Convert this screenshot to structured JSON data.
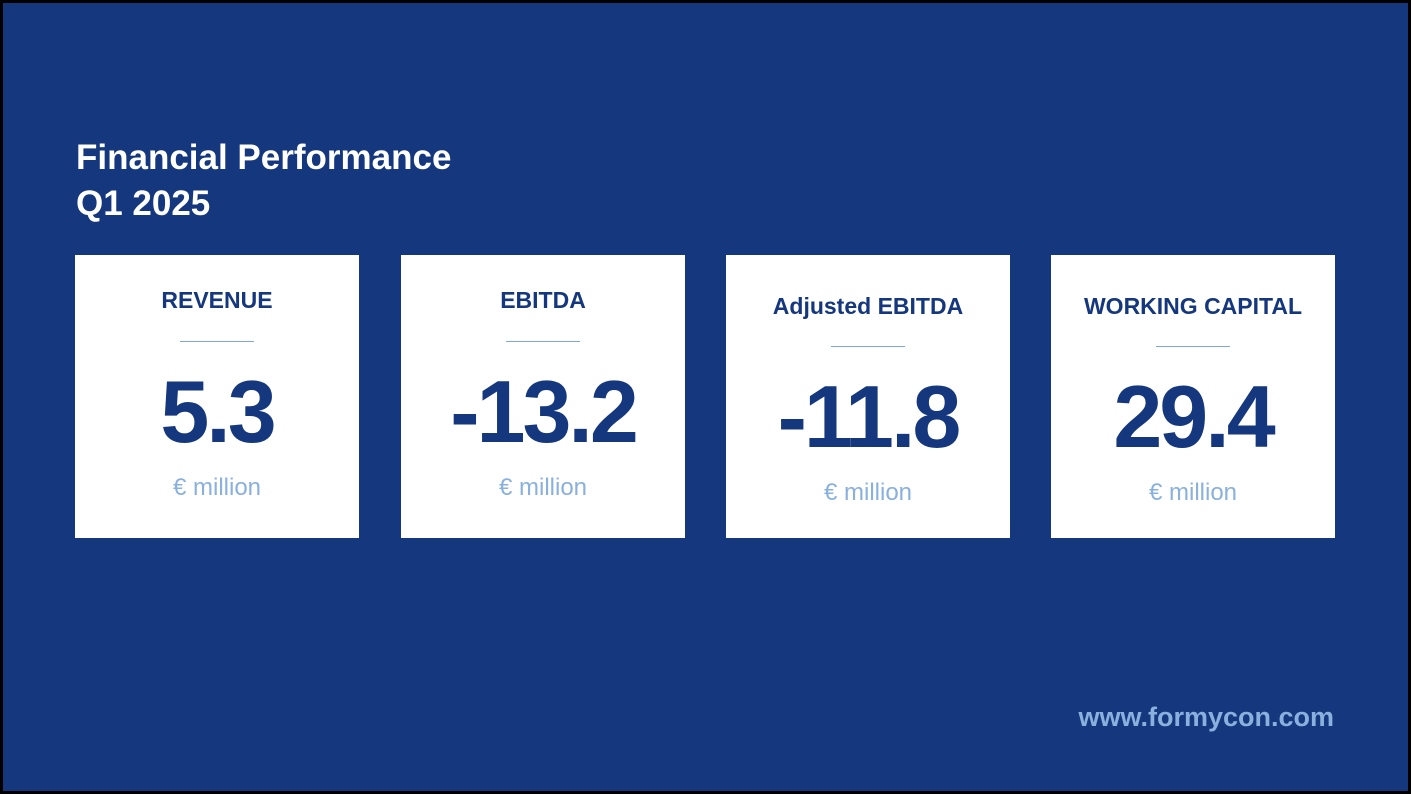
{
  "title": {
    "line1": "Financial Performance",
    "line2": "Q1 2025"
  },
  "cards": [
    {
      "label": "REVENUE",
      "value": "5.3",
      "unit": "€ million"
    },
    {
      "label": "EBITDA",
      "value": "-13.2",
      "unit": "€ million"
    },
    {
      "label": "Adjusted EBITDA",
      "value": "-11.8",
      "unit": "€ million"
    },
    {
      "label": "WORKING CAPITAL",
      "value": "29.4",
      "unit": "€ million"
    }
  ],
  "footer": {
    "website": "www.formycon.com"
  },
  "colors": {
    "background": "#15377e",
    "card": "#ffffff",
    "accent_text": "#15377e",
    "muted_text": "#8ab0de"
  }
}
